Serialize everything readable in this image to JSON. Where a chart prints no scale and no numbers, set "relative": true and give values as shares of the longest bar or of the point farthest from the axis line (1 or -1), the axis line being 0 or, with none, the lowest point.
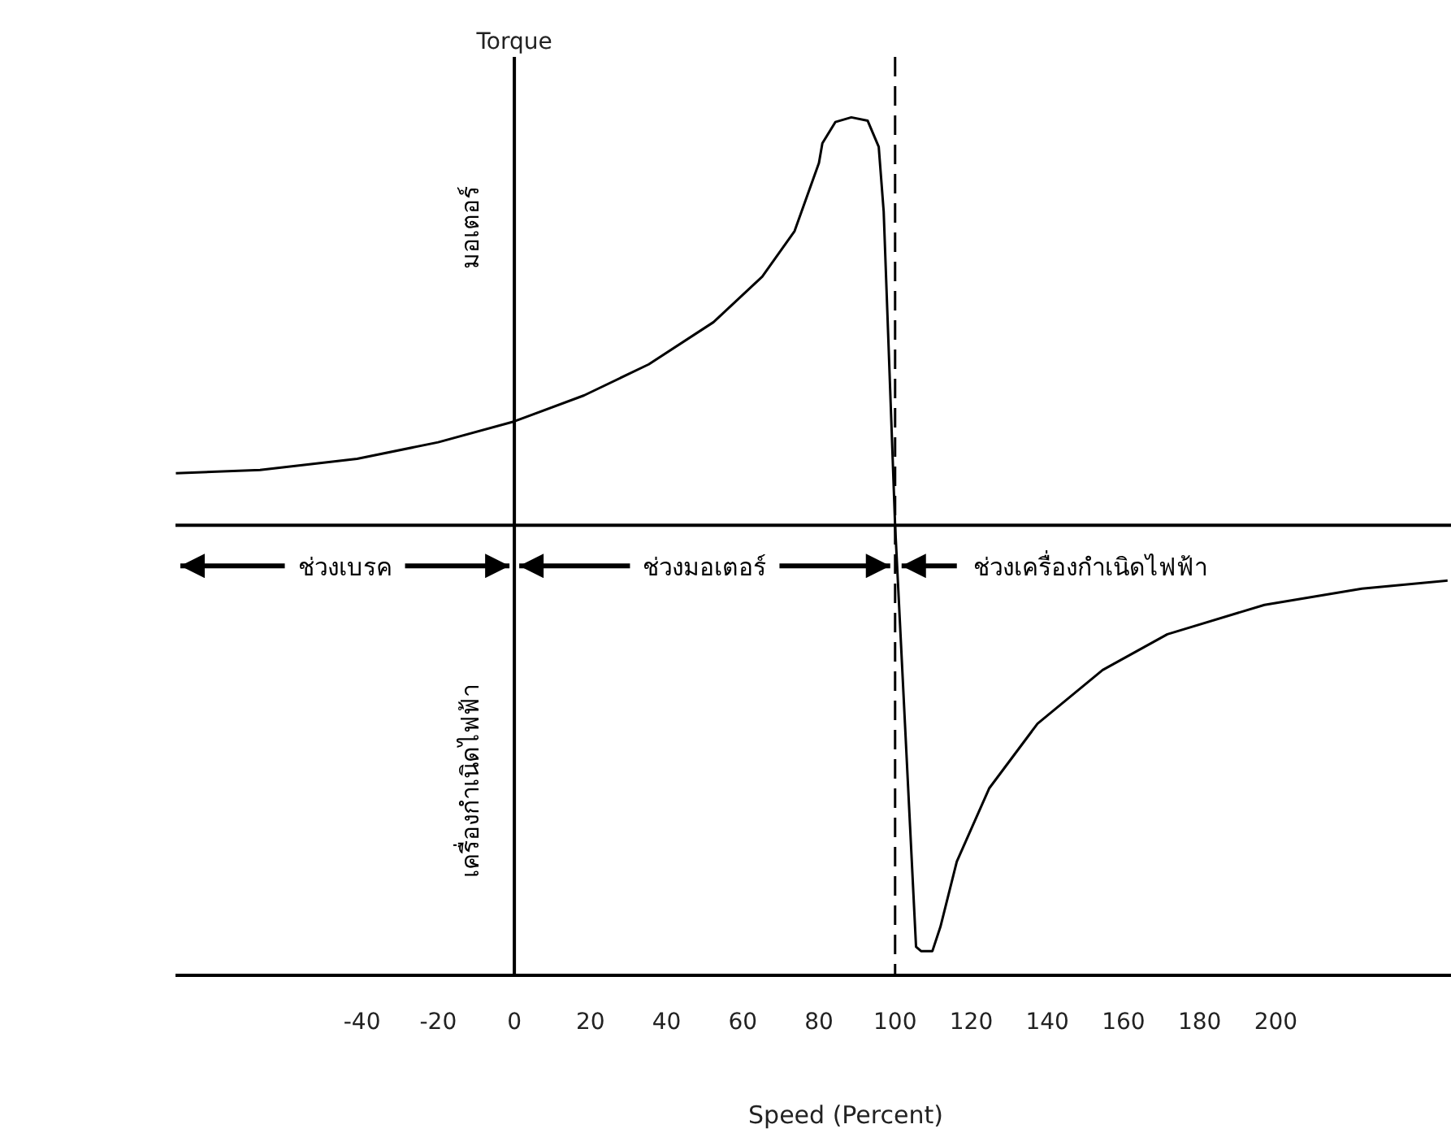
{
  "chart_data": {
    "type": "line",
    "relative": true,
    "ylabel": "Torque",
    "xlabel": "Speed (Percent)",
    "color": "#000000",
    "marker": "none",
    "line_style": "solid",
    "grid": false,
    "x": [
      -88.9,
      -66.8,
      -41.3,
      -20,
      0,
      18.3,
      35.3,
      52.3,
      65.1,
      73.6,
      80,
      80.9,
      84.3,
      88.5,
      92.8,
      95.7,
      97,
      100,
      105.5,
      106.8,
      109.8,
      111.9,
      116.2,
      124.7,
      137.4,
      154.5,
      171.5,
      197,
      222.6,
      245.1
    ],
    "values": [
      0.122,
      0.13,
      0.156,
      0.195,
      0.244,
      0.305,
      0.378,
      0.477,
      0.584,
      0.691,
      0.851,
      0.897,
      0.947,
      0.958,
      0.95,
      0.889,
      0.737,
      0,
      -0.99,
      -1,
      -1,
      -0.943,
      -0.79,
      -0.618,
      -0.466,
      -0.34,
      -0.256,
      -0.187,
      -0.149,
      -0.13
    ],
    "xlim": [
      -89,
      246
    ],
    "xticks": [
      -40,
      -20,
      0,
      20,
      40,
      60,
      80,
      100,
      120,
      140,
      160,
      180,
      200
    ],
    "ref_lines": [
      {
        "axis": "x",
        "value": 100,
        "line_style": "dashed",
        "color": "#000000"
      }
    ],
    "annotations": [
      "ช่วงเบรค",
      "ช่วงมอเตอร์",
      "ช่วงเครื่องกำเนิดไฟฟ้า",
      "มอเตอร์",
      "เครื่องกำเนิดไฟฟ้า"
    ]
  }
}
